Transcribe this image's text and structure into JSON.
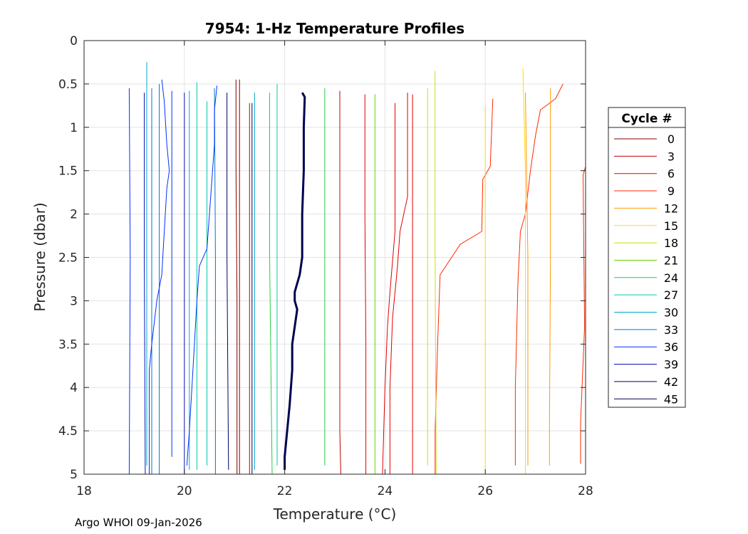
{
  "chart_data": {
    "type": "line",
    "title": "7954: 1-Hz Temperature Profiles",
    "xlabel": "Temperature (°C)",
    "ylabel": "Pressure (dbar)",
    "xlim": [
      18,
      28
    ],
    "ylim": [
      0,
      5
    ],
    "y_reversed": true,
    "xticks": [
      18,
      20,
      22,
      24,
      26,
      28
    ],
    "xtick_labels": [
      "18",
      "20",
      "22",
      "24",
      "26",
      "28"
    ],
    "yticks": [
      0,
      0.5,
      1,
      1.5,
      2,
      2.5,
      3,
      3.5,
      4,
      4.5,
      5
    ],
    "ytick_labels": [
      "0",
      "0.5",
      "1",
      "1.5",
      "2",
      "2.5",
      "3",
      "3.5",
      "4",
      "4.5",
      "5"
    ],
    "grid": true,
    "legend_title": "Cycle #",
    "legend_position": "outside-right",
    "legend_entries": [
      "0",
      "3",
      "6",
      "9",
      "12",
      "15",
      "18",
      "21",
      "24",
      "27",
      "30",
      "33",
      "36",
      "39",
      "42",
      "45"
    ],
    "series": [
      {
        "name": "0",
        "color": "#800000",
        "width": 1,
        "points": [
          [
            21.03,
            0.45
          ],
          [
            21.03,
            1.5
          ],
          [
            21.05,
            3
          ],
          [
            21.05,
            5
          ]
        ]
      },
      {
        "name": "0",
        "color": "#800000",
        "width": 1,
        "points": [
          [
            21.1,
            0.45
          ],
          [
            21.1,
            2
          ],
          [
            21.1,
            3.5
          ],
          [
            21.1,
            5
          ]
        ]
      },
      {
        "name": "3",
        "color": "#bf0000",
        "width": 1,
        "points": [
          [
            21.3,
            0.72
          ],
          [
            21.3,
            2.5
          ],
          [
            21.3,
            5
          ]
        ]
      },
      {
        "name": "3",
        "color": "#bf0000",
        "width": 1,
        "points": [
          [
            23.1,
            0.58
          ],
          [
            23.1,
            2.5
          ],
          [
            23.1,
            4.5
          ],
          [
            23.12,
            5
          ]
        ]
      },
      {
        "name": "6",
        "color": "#e00000",
        "width": 1,
        "points": [
          [
            23.6,
            0.62
          ],
          [
            23.6,
            2
          ],
          [
            23.62,
            3.5
          ],
          [
            23.62,
            5
          ]
        ]
      },
      {
        "name": "6",
        "color": "#e00000",
        "width": 1,
        "points": [
          [
            24.2,
            0.72
          ],
          [
            24.2,
            2.2
          ],
          [
            24.1,
            2.9
          ],
          [
            24.05,
            3.3
          ],
          [
            24.0,
            4.0
          ],
          [
            23.95,
            5
          ]
        ]
      },
      {
        "name": "6",
        "color": "#e00000",
        "width": 1,
        "points": [
          [
            24.45,
            0.6
          ],
          [
            24.45,
            1.8
          ],
          [
            24.3,
            2.2
          ],
          [
            24.25,
            2.6
          ],
          [
            24.15,
            3.2
          ],
          [
            24.1,
            4.0
          ],
          [
            24.1,
            5
          ]
        ]
      },
      {
        "name": "6",
        "color": "#e00000",
        "width": 1,
        "points": [
          [
            24.55,
            0.62
          ],
          [
            24.55,
            2.5
          ],
          [
            24.55,
            5
          ]
        ]
      },
      {
        "name": "9",
        "color": "#ff2a00",
        "width": 1,
        "points": [
          [
            27.55,
            0.5
          ],
          [
            27.4,
            0.67
          ],
          [
            27.1,
            0.8
          ],
          [
            27.0,
            1.1
          ],
          [
            26.9,
            1.5
          ],
          [
            26.8,
            2.0
          ],
          [
            26.7,
            2.2
          ],
          [
            26.65,
            2.8
          ],
          [
            26.6,
            4.0
          ],
          [
            26.6,
            4.9
          ]
        ]
      },
      {
        "name": "9",
        "color": "#ff2a00",
        "width": 1,
        "points": [
          [
            26.15,
            0.67
          ],
          [
            26.1,
            1.45
          ],
          [
            25.95,
            1.6
          ],
          [
            25.93,
            2.2
          ],
          [
            25.5,
            2.35
          ],
          [
            25.1,
            2.7
          ],
          [
            25.05,
            3.5
          ],
          [
            25.0,
            4.5
          ],
          [
            25.0,
            5
          ]
        ]
      },
      {
        "name": "9",
        "color": "#ff2a00",
        "width": 1,
        "points": [
          [
            28.0,
            0.5
          ],
          [
            28.0,
            1.45
          ],
          [
            27.95,
            1.55
          ],
          [
            27.98,
            3.3
          ],
          [
            27.9,
            4.4
          ],
          [
            27.9,
            4.88
          ]
        ]
      },
      {
        "name": "12",
        "color": "#ff9900",
        "width": 1,
        "points": [
          [
            27.3,
            0.55
          ],
          [
            27.3,
            2.5
          ],
          [
            27.28,
            4.5
          ],
          [
            27.28,
            4.9
          ]
        ]
      },
      {
        "name": "12",
        "color": "#ff9900",
        "width": 1,
        "points": [
          [
            26.8,
            0.6
          ],
          [
            26.85,
            2.5
          ],
          [
            26.85,
            4.9
          ]
        ]
      },
      {
        "name": "15",
        "color": "#ffdd00",
        "width": 1,
        "points": [
          [
            26.75,
            0.32
          ],
          [
            26.8,
            1.5
          ],
          [
            26.8,
            3.5
          ],
          [
            26.8,
            5
          ]
        ]
      },
      {
        "name": "15",
        "color": "#ffdd00",
        "width": 1,
        "points": [
          [
            26.0,
            0.75
          ],
          [
            26.0,
            2.5
          ],
          [
            26.0,
            5
          ]
        ]
      },
      {
        "name": "18",
        "color": "#cce000",
        "width": 1,
        "points": [
          [
            25.0,
            0.35
          ],
          [
            25.0,
            2.5
          ],
          [
            25.02,
            5
          ]
        ]
      },
      {
        "name": "18",
        "color": "#cce000",
        "width": 1,
        "points": [
          [
            24.85,
            0.55
          ],
          [
            24.85,
            2.5
          ],
          [
            24.85,
            4.9
          ]
        ]
      },
      {
        "name": "21",
        "color": "#66d000",
        "width": 1,
        "points": [
          [
            23.8,
            0.62
          ],
          [
            23.8,
            2.5
          ],
          [
            23.8,
            5
          ]
        ]
      },
      {
        "name": "24",
        "color": "#22cc44",
        "width": 1,
        "points": [
          [
            22.8,
            0.55
          ],
          [
            22.8,
            2.5
          ],
          [
            22.8,
            4.9
          ]
        ]
      },
      {
        "name": "24",
        "color": "#22cc44",
        "width": 1,
        "points": [
          [
            21.7,
            0.6
          ],
          [
            21.7,
            2.5
          ],
          [
            21.75,
            5
          ]
        ]
      },
      {
        "name": "27",
        "color": "#00ccaa",
        "width": 1,
        "points": [
          [
            21.85,
            0.5
          ],
          [
            21.85,
            2.5
          ],
          [
            21.85,
            4.9
          ]
        ]
      },
      {
        "name": "27",
        "color": "#00ccaa",
        "width": 1,
        "points": [
          [
            20.45,
            0.7
          ],
          [
            20.45,
            2.5
          ],
          [
            20.45,
            4.9
          ]
        ]
      },
      {
        "name": "27",
        "color": "#00ccaa",
        "width": 1,
        "points": [
          [
            20.25,
            0.48
          ],
          [
            20.25,
            2.5
          ],
          [
            20.25,
            4.95
          ]
        ]
      },
      {
        "name": "30",
        "color": "#00aacc",
        "width": 1,
        "points": [
          [
            19.25,
            0.25
          ],
          [
            19.25,
            2.5
          ],
          [
            19.25,
            4.9
          ]
        ]
      },
      {
        "name": "30",
        "color": "#00aacc",
        "width": 1,
        "points": [
          [
            20.1,
            0.58
          ],
          [
            20.1,
            2.5
          ],
          [
            20.1,
            4.95
          ]
        ]
      },
      {
        "name": "30",
        "color": "#00aacc",
        "width": 1,
        "points": [
          [
            21.4,
            0.6
          ],
          [
            21.4,
            2.5
          ],
          [
            21.4,
            4.95
          ]
        ]
      },
      {
        "name": "33",
        "color": "#0077cc",
        "width": 1,
        "points": [
          [
            19.35,
            0.55
          ],
          [
            19.35,
            2.5
          ],
          [
            19.35,
            5
          ]
        ]
      },
      {
        "name": "33",
        "color": "#0077cc",
        "width": 1,
        "points": [
          [
            19.5,
            0.5
          ],
          [
            19.5,
            2.5
          ],
          [
            19.5,
            5
          ]
        ]
      },
      {
        "name": "33",
        "color": "#0077cc",
        "width": 1,
        "points": [
          [
            20.6,
            0.55
          ],
          [
            20.62,
            2.5
          ],
          [
            20.62,
            5
          ]
        ]
      },
      {
        "name": "36",
        "color": "#0030ff",
        "width": 1,
        "points": [
          [
            19.55,
            0.45
          ],
          [
            19.6,
            0.7
          ],
          [
            19.65,
            1.2
          ],
          [
            19.7,
            1.5
          ],
          [
            19.65,
            1.7
          ],
          [
            19.6,
            2.2
          ],
          [
            19.55,
            2.7
          ],
          [
            19.45,
            3.0
          ],
          [
            19.35,
            3.5
          ],
          [
            19.3,
            3.8
          ],
          [
            19.3,
            4.2
          ],
          [
            19.3,
            5
          ]
        ]
      },
      {
        "name": "36",
        "color": "#0030ff",
        "width": 1,
        "points": [
          [
            20.65,
            0.52
          ],
          [
            20.6,
            0.8
          ],
          [
            20.6,
            1.2
          ],
          [
            20.55,
            1.6
          ],
          [
            20.5,
            2.0
          ],
          [
            20.45,
            2.4
          ],
          [
            20.3,
            2.6
          ],
          [
            20.25,
            3.0
          ],
          [
            20.2,
            3.5
          ],
          [
            20.15,
            4.0
          ],
          [
            20.1,
            4.5
          ],
          [
            20.05,
            4.9
          ]
        ]
      },
      {
        "name": "36",
        "color": "#0030ff",
        "width": 1,
        "points": [
          [
            19.75,
            0.58
          ],
          [
            19.75,
            2.5
          ],
          [
            19.75,
            4.8
          ]
        ]
      },
      {
        "name": "36",
        "color": "#0030ff",
        "width": 1,
        "points": [
          [
            18.9,
            0.55
          ],
          [
            18.92,
            2.5
          ],
          [
            18.9,
            5
          ]
        ]
      },
      {
        "name": "39",
        "color": "#1010bb",
        "width": 1,
        "points": [
          [
            19.2,
            0.6
          ],
          [
            19.2,
            2.5
          ],
          [
            19.22,
            5
          ]
        ]
      },
      {
        "name": "39",
        "color": "#1010bb",
        "width": 1,
        "points": [
          [
            20.0,
            0.6
          ],
          [
            20.0,
            2.5
          ],
          [
            20.0,
            5
          ]
        ]
      },
      {
        "name": "42",
        "color": "#000066",
        "width": 1,
        "points": [
          [
            20.85,
            0.6
          ],
          [
            20.85,
            2.5
          ],
          [
            20.88,
            4.95
          ]
        ]
      },
      {
        "name": "42",
        "color": "#000066",
        "width": 1,
        "points": [
          [
            21.35,
            0.72
          ],
          [
            21.35,
            2.5
          ],
          [
            21.35,
            5
          ]
        ]
      },
      {
        "name": "45",
        "color": "#000050",
        "width": 3,
        "points": [
          [
            22.35,
            0.6
          ],
          [
            22.4,
            0.65
          ],
          [
            22.38,
            1.0
          ],
          [
            22.38,
            1.5
          ],
          [
            22.35,
            2.0
          ],
          [
            22.35,
            2.5
          ],
          [
            22.3,
            2.7
          ],
          [
            22.25,
            2.8
          ],
          [
            22.2,
            2.9
          ],
          [
            22.2,
            3.0
          ],
          [
            22.25,
            3.1
          ],
          [
            22.2,
            3.3
          ],
          [
            22.15,
            3.5
          ],
          [
            22.15,
            3.8
          ],
          [
            22.1,
            4.2
          ],
          [
            22.05,
            4.5
          ],
          [
            22.0,
            4.8
          ],
          [
            22.0,
            4.95
          ]
        ]
      }
    ]
  },
  "colors": {
    "legend": [
      "#800000",
      "#bf0000",
      "#e00000",
      "#ff2a00",
      "#ff9900",
      "#ffdd00",
      "#cce000",
      "#66d000",
      "#22cc44",
      "#00ccaa",
      "#00aacc",
      "#0077cc",
      "#0030ff",
      "#1010bb",
      "#000066",
      "#000050"
    ]
  },
  "footer": "Argo WHOI 09-Jan-2026"
}
